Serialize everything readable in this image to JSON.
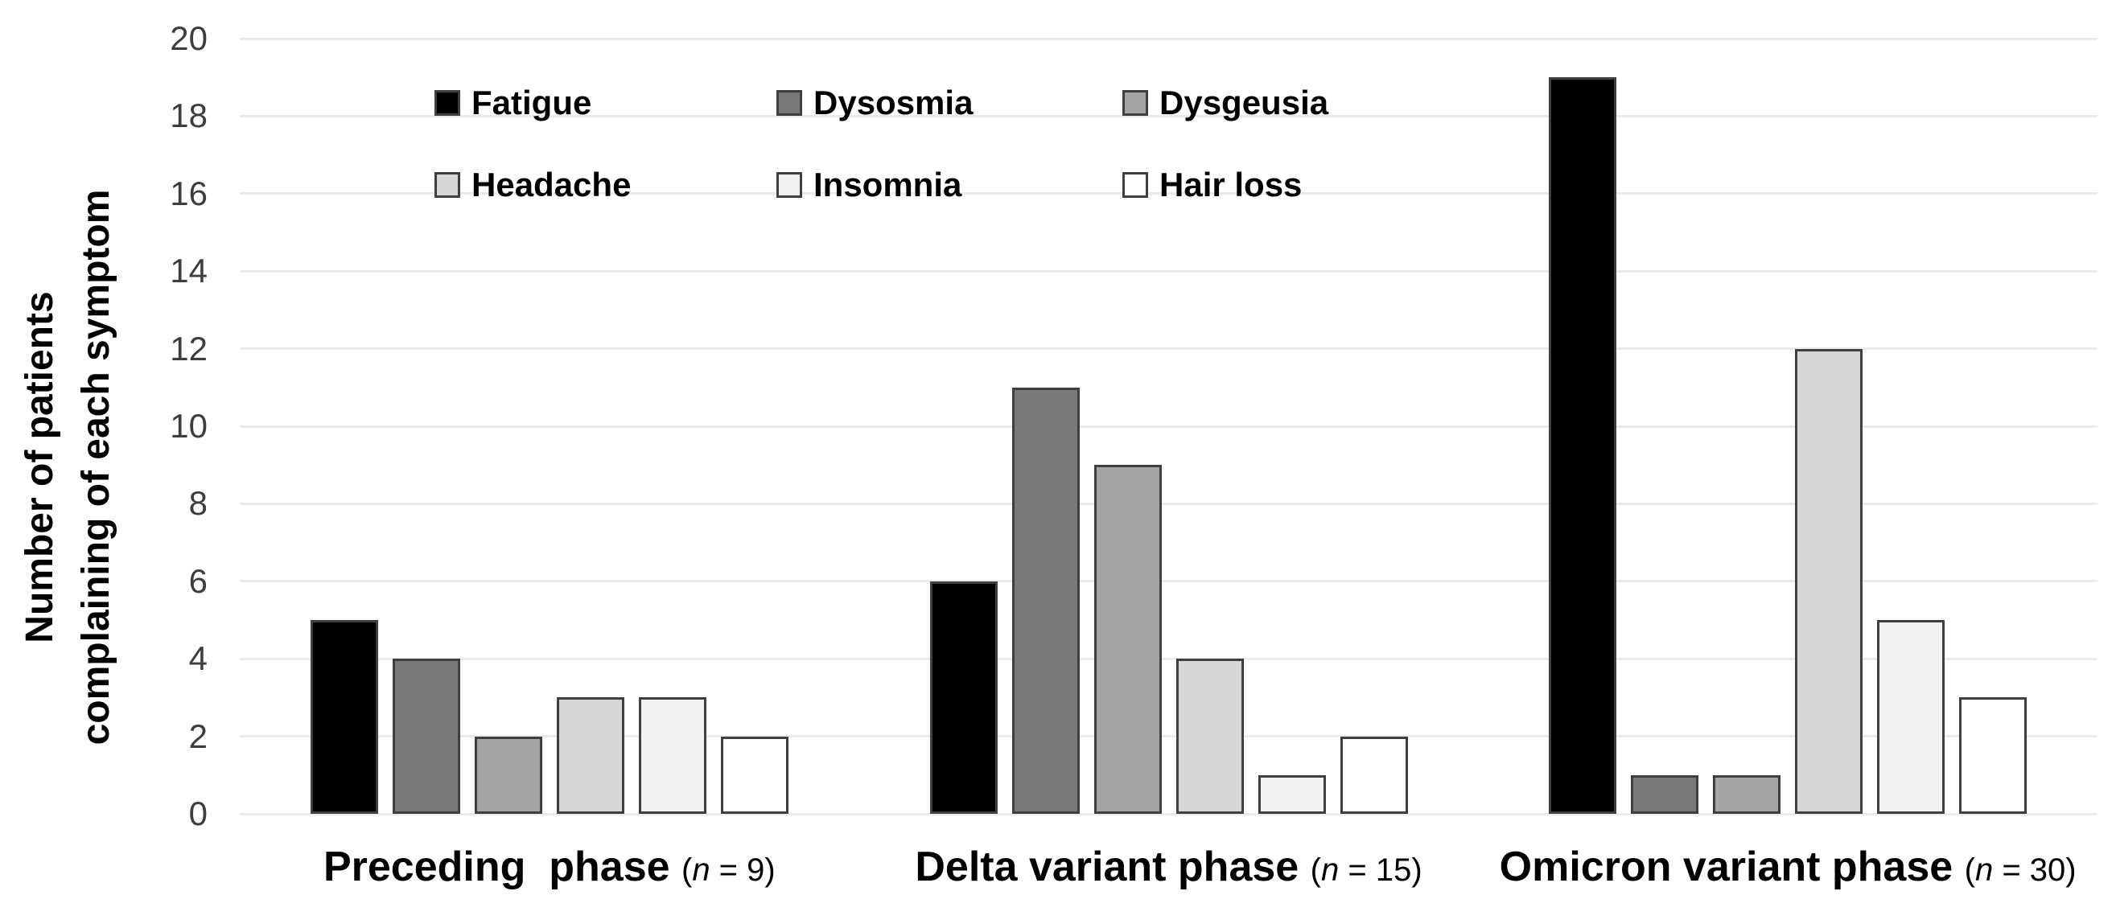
{
  "chart_data": {
    "type": "bar",
    "title": "",
    "ylabel": "Number of patients complaining of each symptom",
    "ylabel_lines": [
      "Number of patients",
      "complaining of each symptom"
    ],
    "ylim": [
      0,
      20
    ],
    "yticks": [
      0,
      2,
      4,
      6,
      8,
      10,
      12,
      14,
      16,
      18,
      20
    ],
    "grid": true,
    "legend_position": "inside-top-left",
    "legend_layout": {
      "rows": 2,
      "columns": 3
    },
    "groups": [
      {
        "label": "Preceding  phase",
        "note_open": "(",
        "note_var": "n",
        "note_tail": " = 9)"
      },
      {
        "label": "Delta variant phase",
        "note_open": "(",
        "note_var": "n",
        "note_tail": " = 15)"
      },
      {
        "label": "Omicron variant phase",
        "note_open": "(",
        "note_var": "n",
        "note_tail": " = 30)"
      }
    ],
    "series": [
      {
        "name": "Fatigue",
        "color": "#000000",
        "values": [
          5,
          6,
          19
        ]
      },
      {
        "name": "Dysosmia",
        "color": "#787878",
        "values": [
          4,
          11,
          1
        ]
      },
      {
        "name": "Dysgeusia",
        "color": "#a5a5a5",
        "values": [
          2,
          9,
          1
        ]
      },
      {
        "name": "Headache",
        "color": "#d6d6d6",
        "values": [
          3,
          4,
          12
        ]
      },
      {
        "name": "Insomnia",
        "color": "#f1f1f1",
        "values": [
          3,
          1,
          5
        ]
      },
      {
        "name": "Hair loss",
        "color": "#ffffff",
        "values": [
          2,
          2,
          3
        ]
      }
    ],
    "colors": {
      "bar_border": "#3f3f3f",
      "grid_line": "#ebebeb",
      "tick_text": "#3d3d3d",
      "label_text": "#000000",
      "background": "#ffffff"
    }
  }
}
